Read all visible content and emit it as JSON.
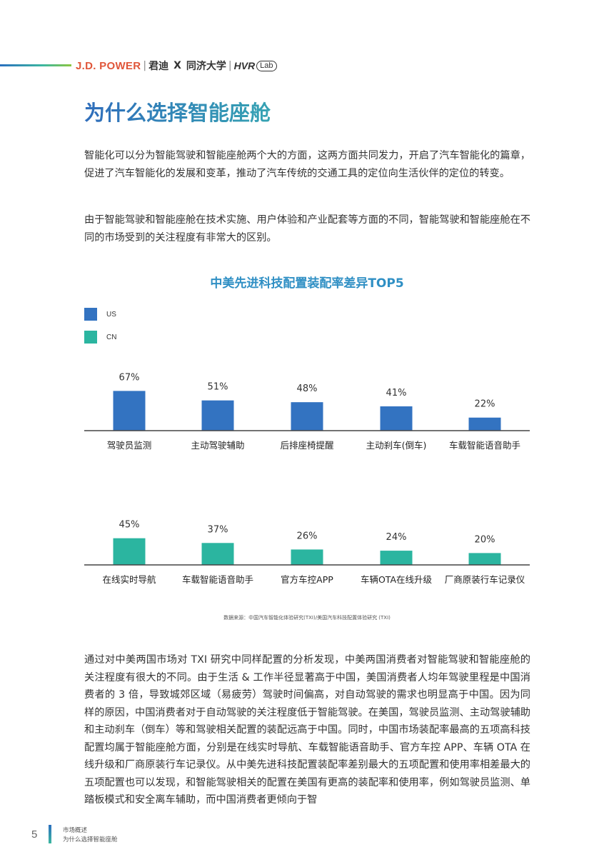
{
  "header": {
    "brand_jdp": "J.D. POWER",
    "brand_sep1": "|",
    "brand_jundi": "君迪",
    "brand_x": "X",
    "brand_tongji": "同济大学",
    "brand_sep2": "|",
    "brand_hvr": "HVR",
    "brand_lab": "Lab"
  },
  "title": "为什么选择智能座舱",
  "paragraphs": {
    "p1": "智能化可以分为智能驾驶和智能座舱两个大的方面，这两方面共同发力，开启了汽车智能化的篇章，促进了汽车智能化的发展和变革，推动了汽车传统的交通工具的定位向生活伙伴的定位的转变。",
    "p2": "由于智能驾驶和智能座舱在技术实施、用户体验和产业配套等方面的不同，智能驾驶和智能座舱在不同的市场受到的关注程度有非常大的区别。",
    "p3": "通过对中美两国市场对 TXI 研究中同样配置的分析发现，中美两国消费者对智能驾驶和智能座舱的关注程度有很大的不同。由于生活 & 工作半径显著高于中国，美国消费者人均年驾驶里程是中国消费者的 3 倍，导致城郊区域（易疲劳）驾驶时间偏高，对自动驾驶的需求也明显高于中国。因为同样的原因，中国消费者对于自动驾驶的关注程度低于智能驾驶。在美国，驾驶员监测、主动驾驶辅助和主动刹车（倒车）等和驾驶相关配置的装配远高于中国。同时，中国市场装配率最高的五项高科技配置均属于智能座舱方面，分别是在线实时导航、车载智能语音助手、官方车控 APP、车辆 OTA 在线升级和厂商原装行车记录仪。从中美先进科技配置装配率差别最大的五项配置和使用率相差最大的五项配置也可以发现，和智能驾驶相关的配置在美国有更高的装配率和使用率，例如驾驶员监测、单踏板模式和安全离车辅助，而中国消费者更倾向于智"
  },
  "chart_data": {
    "type": "bar",
    "title": "中美先进科技配置装配率差异TOP5",
    "legend": [
      {
        "name": "US",
        "color": "#3373c1"
      },
      {
        "name": "CN",
        "color": "#2bb5a0"
      }
    ],
    "series": [
      {
        "name": "US",
        "color": "#3373c1",
        "categories": [
          "驾驶员监测",
          "主动驾驶辅助",
          "后排座椅提醒",
          "主动刹车(倒车)",
          "车载智能语音助手"
        ],
        "values": [
          67,
          51,
          48,
          41,
          22
        ],
        "labels": [
          "67%",
          "51%",
          "48%",
          "41%",
          "22%"
        ]
      },
      {
        "name": "CN",
        "color": "#2bb5a0",
        "categories": [
          "在线实时导航",
          "车载智能语音助手",
          "官方车控APP",
          "车辆OTA在线升级",
          "厂商原装行车记录仪"
        ],
        "values": [
          45,
          37,
          26,
          24,
          20
        ],
        "labels": [
          "45%",
          "37%",
          "26%",
          "24%",
          "20%"
        ]
      }
    ],
    "ylim": [
      0,
      100
    ],
    "grid": false,
    "legend_position": "top-left",
    "source": "数据来源：中国汽车智能化体验研究(TXI)/美国汽车科技配置体验研究 (TXI)"
  },
  "footer": {
    "page_number": "5",
    "section": "市场概述",
    "subsection": "为什么选择智能座舱"
  }
}
